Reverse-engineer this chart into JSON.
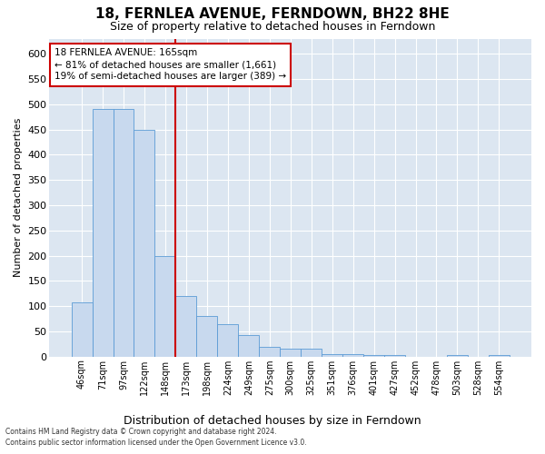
{
  "title": "18, FERNLEA AVENUE, FERNDOWN, BH22 8HE",
  "subtitle": "Size of property relative to detached houses in Ferndown",
  "xlabel": "Distribution of detached houses by size in Ferndown",
  "ylabel": "Number of detached properties",
  "categories": [
    "46sqm",
    "71sqm",
    "97sqm",
    "122sqm",
    "148sqm",
    "173sqm",
    "198sqm",
    "224sqm",
    "249sqm",
    "275sqm",
    "300sqm",
    "325sqm",
    "351sqm",
    "376sqm",
    "401sqm",
    "427sqm",
    "452sqm",
    "478sqm",
    "503sqm",
    "528sqm",
    "554sqm"
  ],
  "values": [
    108,
    490,
    490,
    450,
    200,
    120,
    80,
    65,
    42,
    20,
    16,
    16,
    5,
    4,
    3,
    3,
    0,
    0,
    3,
    0,
    3
  ],
  "bar_color": "#c8d9ee",
  "bar_edge_color": "#5b9bd5",
  "vline_x": 5,
  "vline_color": "#cc0000",
  "annotation_text": "18 FERNLEA AVENUE: 165sqm\n← 81% of detached houses are smaller (1,661)\n19% of semi-detached houses are larger (389) →",
  "annotation_box_color": "#ffffff",
  "annotation_box_edge": "#cc0000",
  "ylim": [
    0,
    630
  ],
  "yticks": [
    0,
    50,
    100,
    150,
    200,
    250,
    300,
    350,
    400,
    450,
    500,
    550,
    600
  ],
  "footer_line1": "Contains HM Land Registry data © Crown copyright and database right 2024.",
  "footer_line2": "Contains public sector information licensed under the Open Government Licence v3.0.",
  "fig_bg_color": "#ffffff",
  "plot_bg_color": "#dce6f1",
  "grid_color": "#ffffff"
}
